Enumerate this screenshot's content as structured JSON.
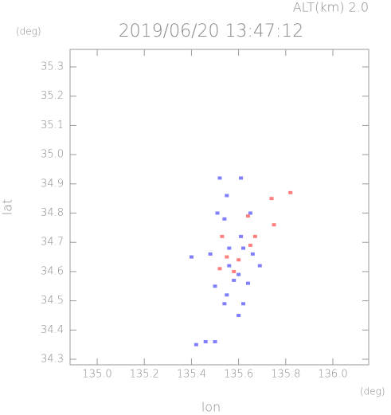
{
  "chart_data": {
    "type": "scatter",
    "title": "2019/06/20 13:47:12",
    "subtitle": "ALT(km) 2.0",
    "y_unit": "(deg)",
    "x_unit": "(deg)",
    "xlabel": "lon",
    "ylabel": "lat",
    "xlim": [
      134.885,
      136.152
    ],
    "ylim": [
      34.281,
      35.36
    ],
    "xticks": [
      {
        "value": 135,
        "label": "135.0"
      },
      135.2,
      135.4,
      135.6,
      135.8,
      {
        "value": 136,
        "label": "136.0"
      }
    ],
    "yticks": [
      34.3,
      34.4,
      34.5,
      34.6,
      34.7,
      34.8,
      34.9,
      {
        "value": 35,
        "label": "35.0"
      },
      35.1,
      35.2,
      35.3
    ],
    "series": [
      {
        "color": "#7f7fff",
        "x": [
          135.52,
          135.61,
          135.55,
          135.51,
          135.54,
          135.65,
          135.61,
          135.4,
          135.48,
          135.62,
          135.66,
          135.56,
          135.6,
          135.58,
          135.5,
          135.64,
          135.55,
          135.54,
          135.62,
          135.6,
          135.42,
          135.46,
          135.5,
          135.69,
          135.56
        ],
        "values": [
          34.92,
          34.92,
          34.86,
          34.8,
          34.78,
          34.8,
          34.72,
          34.65,
          34.66,
          34.68,
          34.66,
          34.62,
          34.59,
          34.57,
          34.55,
          34.56,
          34.52,
          34.49,
          34.49,
          34.45,
          34.35,
          34.36,
          34.36,
          34.62,
          34.68
        ]
      },
      {
        "color": "#ff7f7f",
        "x": [
          135.53,
          135.55,
          135.6,
          135.58,
          135.67,
          135.64,
          135.75,
          135.82,
          135.74,
          135.52,
          135.65
        ],
        "values": [
          34.72,
          34.65,
          34.64,
          34.6,
          34.72,
          34.79,
          34.76,
          34.87,
          34.85,
          34.61,
          34.69
        ]
      }
    ]
  }
}
